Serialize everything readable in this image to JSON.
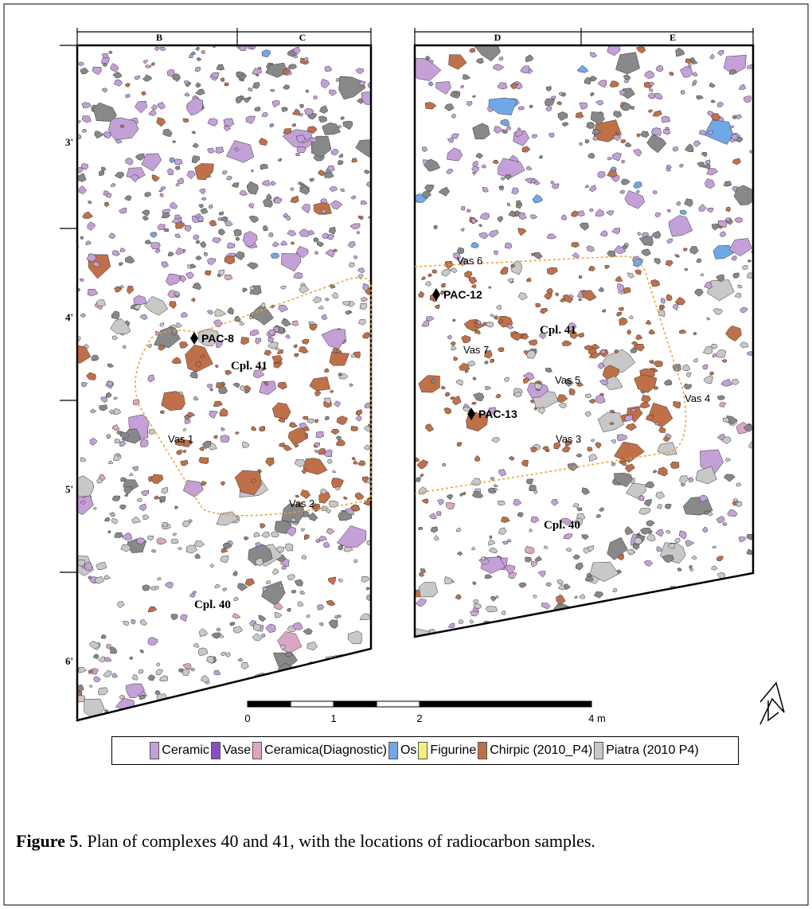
{
  "figure": {
    "column_labels": [
      "B",
      "C",
      "D",
      "E"
    ],
    "row_labels": [
      "3'",
      "4'",
      "5'",
      "6'"
    ],
    "samples": [
      "PAC-8",
      "PAC-12",
      "PAC-13"
    ],
    "annotations": [
      "Cpl. 41",
      "Cpl. 41",
      "Cpl. 40",
      "Cpl. 40",
      "Vas 1",
      "Vas 2",
      "Vas 3",
      "Vas 4",
      "Vas 5",
      "Vas 6",
      "Vas 7"
    ],
    "scale": [
      "0",
      "1",
      "2",
      "4 m"
    ],
    "legend": [
      {
        "label": "Ceramic",
        "color": "#c4a0d8"
      },
      {
        "label": "Vase",
        "color": "#8a4fc0"
      },
      {
        "label": "Ceramica(Diagnostic)",
        "color": "#dba6c4"
      },
      {
        "label": "Os",
        "color": "#6fa8e6"
      },
      {
        "label": "Figurine",
        "color": "#f2f07a"
      },
      {
        "label": "Chirpic (2010_P4)",
        "color": "#c07048"
      },
      {
        "label": "Piatra (2010 P4)",
        "color": "#c8c8c8"
      }
    ]
  },
  "caption": {
    "label": "Figure 5",
    "text": ". Plan of complexes 40 and 41, with the locations of radiocarbon samples."
  }
}
